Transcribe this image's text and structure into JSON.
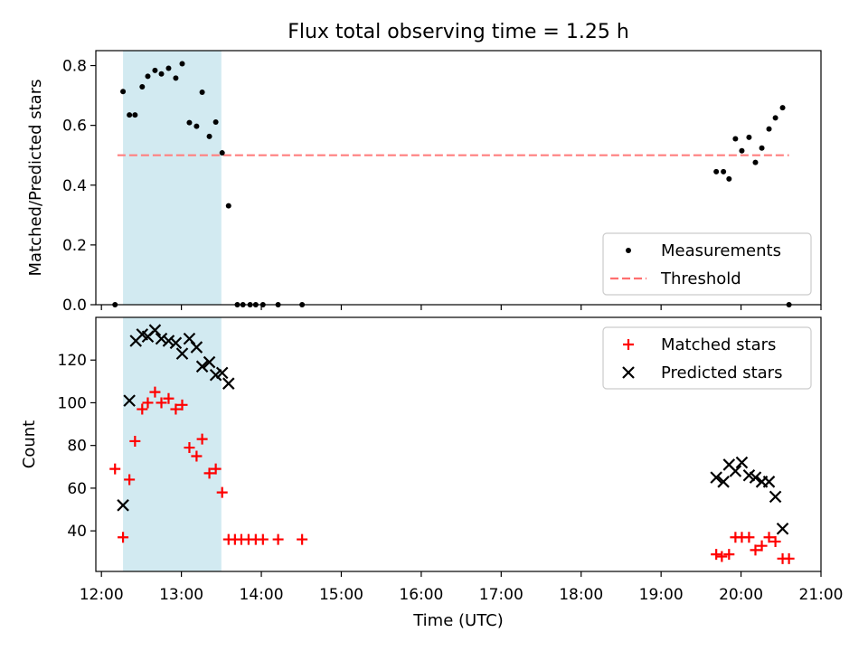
{
  "title": "Flux total observing time = 1.25 h",
  "chart_data": [
    {
      "type": "scatter",
      "panel": "top",
      "ylabel": "Matched/Predicted stars",
      "xlim": [
        11.93,
        21.0
      ],
      "ylim": [
        0.0,
        0.85
      ],
      "yticks": [
        "0.0",
        "0.2",
        "0.4",
        "0.6",
        "0.8"
      ],
      "yticks_values": [
        0.0,
        0.2,
        0.4,
        0.6,
        0.8
      ],
      "shaded_band": {
        "x_start": 12.27,
        "x_end": 13.5,
        "color": "#add8e6"
      },
      "legend": {
        "position": "lower-right",
        "entries": [
          {
            "label": "Measurements",
            "marker": "dot",
            "color": "#000000"
          },
          {
            "label": "Threshold",
            "marker": "dashed-line",
            "color": "#ff6f6f"
          }
        ]
      },
      "threshold": {
        "y": 0.5,
        "x_start": 12.2,
        "x_end": 20.6,
        "color": "#ff7f7f"
      },
      "series": [
        {
          "name": "Measurements",
          "color": "#000000",
          "points": [
            [
              12.17,
              0.0
            ],
            [
              12.27,
              0.713
            ],
            [
              12.35,
              0.635
            ],
            [
              12.42,
              0.635
            ],
            [
              12.51,
              0.729
            ],
            [
              12.58,
              0.764
            ],
            [
              12.67,
              0.784
            ],
            [
              12.75,
              0.772
            ],
            [
              12.84,
              0.791
            ],
            [
              12.93,
              0.758
            ],
            [
              13.01,
              0.806
            ],
            [
              13.1,
              0.609
            ],
            [
              13.19,
              0.597
            ],
            [
              13.26,
              0.711
            ],
            [
              13.35,
              0.563
            ],
            [
              13.43,
              0.611
            ],
            [
              13.51,
              0.508
            ],
            [
              13.59,
              0.331
            ],
            [
              13.7,
              0.0
            ],
            [
              13.77,
              0.0
            ],
            [
              13.86,
              0.0
            ],
            [
              13.93,
              0.0
            ],
            [
              14.02,
              0.0
            ],
            [
              14.21,
              0.0
            ],
            [
              14.51,
              0.0
            ],
            [
              19.69,
              0.445
            ],
            [
              19.78,
              0.445
            ],
            [
              19.85,
              0.421
            ],
            [
              19.93,
              0.555
            ],
            [
              20.01,
              0.515
            ],
            [
              20.1,
              0.56
            ],
            [
              20.18,
              0.476
            ],
            [
              20.26,
              0.524
            ],
            [
              20.35,
              0.588
            ],
            [
              20.43,
              0.625
            ],
            [
              20.52,
              0.659
            ],
            [
              20.6,
              0.0
            ]
          ]
        }
      ]
    },
    {
      "type": "scatter",
      "panel": "bottom",
      "ylabel": "Count",
      "xlabel": "Time (UTC)",
      "xlim": [
        11.93,
        21.0
      ],
      "ylim": [
        21.0,
        140.0
      ],
      "xticks": [
        "12:00",
        "13:00",
        "14:00",
        "15:00",
        "16:00",
        "17:00",
        "18:00",
        "19:00",
        "20:00",
        "21:00"
      ],
      "xticks_values": [
        12,
        13,
        14,
        15,
        16,
        17,
        18,
        19,
        20,
        21
      ],
      "yticks": [
        "40",
        "60",
        "80",
        "100",
        "120"
      ],
      "yticks_values": [
        40,
        60,
        80,
        100,
        120
      ],
      "shaded_band": {
        "x_start": 12.27,
        "x_end": 13.5,
        "color": "#add8e6"
      },
      "legend": {
        "position": "upper-right",
        "entries": [
          {
            "label": "Matched stars",
            "marker": "plus",
            "color": "#ff0000"
          },
          {
            "label": "Predicted stars",
            "marker": "x",
            "color": "#000000"
          }
        ]
      },
      "series": [
        {
          "name": "Matched stars",
          "marker": "plus",
          "color": "#ff0000",
          "points": [
            [
              12.17,
              69
            ],
            [
              12.27,
              37
            ],
            [
              12.35,
              64
            ],
            [
              12.42,
              82
            ],
            [
              12.51,
              97
            ],
            [
              12.58,
              100
            ],
            [
              12.67,
              105
            ],
            [
              12.75,
              100
            ],
            [
              12.84,
              102
            ],
            [
              12.93,
              97
            ],
            [
              13.01,
              99
            ],
            [
              13.1,
              79
            ],
            [
              13.19,
              75
            ],
            [
              13.26,
              83
            ],
            [
              13.35,
              67
            ],
            [
              13.43,
              69
            ],
            [
              13.51,
              58
            ],
            [
              13.59,
              36
            ],
            [
              13.67,
              36
            ],
            [
              13.75,
              36
            ],
            [
              13.84,
              36
            ],
            [
              13.93,
              36
            ],
            [
              14.02,
              36
            ],
            [
              14.21,
              36
            ],
            [
              14.51,
              36
            ],
            [
              19.69,
              29
            ],
            [
              19.76,
              28
            ],
            [
              19.85,
              29
            ],
            [
              19.93,
              37
            ],
            [
              20.01,
              37
            ],
            [
              20.1,
              37
            ],
            [
              20.18,
              31
            ],
            [
              20.26,
              33
            ],
            [
              20.35,
              37
            ],
            [
              20.43,
              35
            ],
            [
              20.52,
              27
            ],
            [
              20.6,
              27
            ]
          ]
        },
        {
          "name": "Predicted stars",
          "marker": "x",
          "color": "#000000",
          "points": [
            [
              12.27,
              52
            ],
            [
              12.35,
              101
            ],
            [
              12.43,
              129
            ],
            [
              12.51,
              132
            ],
            [
              12.58,
              131
            ],
            [
              12.67,
              134
            ],
            [
              12.75,
              130
            ],
            [
              12.84,
              129
            ],
            [
              12.93,
              128
            ],
            [
              13.01,
              123
            ],
            [
              13.1,
              130
            ],
            [
              13.19,
              126
            ],
            [
              13.26,
              117
            ],
            [
              13.35,
              119
            ],
            [
              13.43,
              113
            ],
            [
              13.51,
              114
            ],
            [
              13.59,
              109
            ],
            [
              19.69,
              65
            ],
            [
              19.78,
              63
            ],
            [
              19.85,
              71
            ],
            [
              19.93,
              68
            ],
            [
              20.01,
              72
            ],
            [
              20.1,
              66
            ],
            [
              20.18,
              65
            ],
            [
              20.26,
              63
            ],
            [
              20.35,
              63
            ],
            [
              20.43,
              56
            ],
            [
              20.52,
              41
            ]
          ]
        }
      ]
    }
  ]
}
